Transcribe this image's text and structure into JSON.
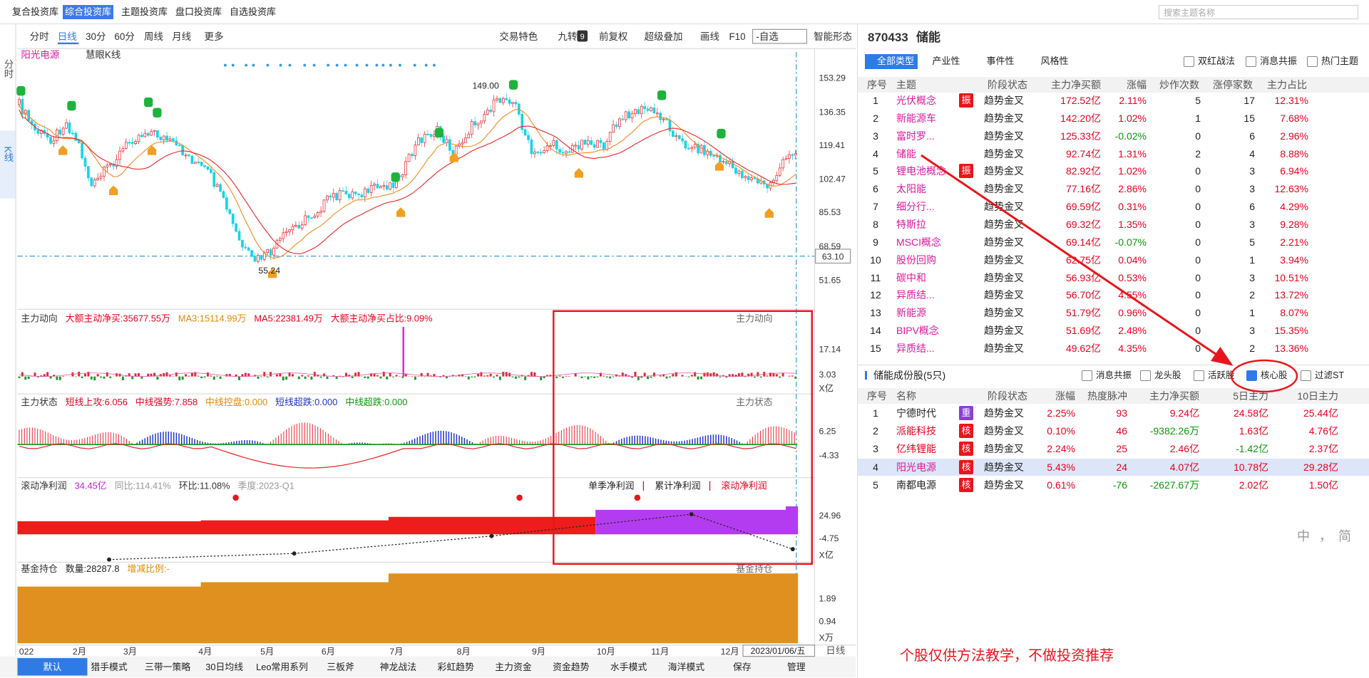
{
  "top_tabs": [
    "复合投资库",
    "综合投资库",
    "主题投资库",
    "盘口投资库",
    "自选投资库"
  ],
  "search_placeholder": "搜索主题名称",
  "side_tabs": [
    "分时",
    "K线"
  ],
  "toolbar": {
    "periods": [
      "分时",
      "日线",
      "30分",
      "60分",
      "周线",
      "月线",
      "更多"
    ],
    "tools": [
      "交易特色",
      "九转",
      "前复权",
      "超级叠加",
      "画线",
      "F10",
      "-自选",
      "智能形态"
    ],
    "jiuzhuan_badge": "9"
  },
  "kline": {
    "stock": "阳光电源",
    "indicator": "慧眼K线",
    "price_ticks": [
      "153.29",
      "136.35",
      "119.41",
      "102.47",
      "85.53",
      "68.59",
      "51.65"
    ],
    "current_price": "63.10",
    "high_label": "149.00",
    "low_label": "55.24"
  },
  "panels": [
    {
      "title": "主力动向",
      "items": [
        "大额主动净买:35677.55万",
        "MA3:15114.99万",
        "MA5:22381.49万",
        "大额主动净买占比:9.09%"
      ],
      "ticks": [
        "17.14",
        "3.03",
        "X亿"
      ]
    },
    {
      "title": "主力状态",
      "items": [
        "短线上攻:6.056",
        "中线强势:7.858",
        "中线控盘:0.000",
        "短线超跌:0.000",
        "中线超跌:0.000"
      ],
      "ticks": [
        "6.25",
        "-4.33"
      ]
    },
    {
      "title": "滚动净利润",
      "items": [
        "34.45亿",
        "同比:114.41%",
        "环比:11.08%",
        "季度:2023-Q1"
      ],
      "buttons": [
        "单季净利润",
        "累计净利润",
        "滚动净利润"
      ],
      "ticks": [
        "24.96",
        "-4.75",
        "X亿"
      ]
    },
    {
      "title": "基金持仓",
      "items": [
        "数量:28287.8",
        "增减比例:-"
      ],
      "ticks": [
        "1.89",
        "0.94",
        "X万"
      ]
    }
  ],
  "x_axis": [
    "022",
    "2月",
    "3月",
    "4月",
    "5月",
    "6月",
    "7月",
    "8月",
    "9月",
    "10月",
    "11月",
    "12月"
  ],
  "x_cursor": "2023/01/06/五",
  "period": "日线",
  "bottom_tabs": [
    "默认",
    "猎手模式",
    "三带一策略",
    "30日均线",
    "Leo常用系列",
    "三板斧",
    "神龙战法",
    "彩虹趋势",
    "主力资金",
    "资金趋势",
    "水手模式",
    "海洋模式",
    "保存",
    "管理"
  ],
  "detail": {
    "code": "870433",
    "name": "储能",
    "filter_tabs": [
      "全部类型",
      "产业性",
      "事件性",
      "风格性"
    ],
    "checks": [
      "双红战法",
      "消息共振",
      "热门主题"
    ],
    "columns": [
      "序号",
      "主题",
      "阶段状态",
      "主力净买额",
      "涨幅",
      "炒作次数",
      "涨停家数",
      "主力占比"
    ],
    "rows": [
      {
        "no": "1",
        "name": "光伏概念",
        "badge": "振",
        "stage": "趋势金叉",
        "net": "172.52亿",
        "chg": "2.11%",
        "times": "5",
        "limit": "17",
        "ratio": "12.31%"
      },
      {
        "no": "2",
        "name": "新能源车",
        "stage": "趋势金叉",
        "net": "142.20亿",
        "chg": "1.02%",
        "times": "1",
        "limit": "15",
        "ratio": "7.68%"
      },
      {
        "no": "3",
        "name": "富时罗...",
        "stage": "趋势金叉",
        "net": "125.33亿",
        "chg": "-0.02%",
        "times": "0",
        "limit": "6",
        "ratio": "2.96%"
      },
      {
        "no": "4",
        "name": "储能",
        "stage": "趋势金叉",
        "net": "92.74亿",
        "chg": "1.31%",
        "times": "2",
        "limit": "4",
        "ratio": "8.88%"
      },
      {
        "no": "5",
        "name": "锂电池概念",
        "badge": "振",
        "stage": "趋势金叉",
        "net": "82.92亿",
        "chg": "1.02%",
        "times": "0",
        "limit": "3",
        "ratio": "6.94%"
      },
      {
        "no": "6",
        "name": "太阳能",
        "stage": "趋势金叉",
        "net": "77.16亿",
        "chg": "2.86%",
        "times": "0",
        "limit": "3",
        "ratio": "12.63%"
      },
      {
        "no": "7",
        "name": "细分行...",
        "stage": "趋势金叉",
        "net": "69.59亿",
        "chg": "0.31%",
        "times": "0",
        "limit": "6",
        "ratio": "4.29%"
      },
      {
        "no": "8",
        "name": "特斯拉",
        "stage": "趋势金叉",
        "net": "69.32亿",
        "chg": "1.35%",
        "times": "0",
        "limit": "3",
        "ratio": "9.28%"
      },
      {
        "no": "9",
        "name": "MSCI概念",
        "stage": "趋势金叉",
        "net": "69.14亿",
        "chg": "-0.07%",
        "times": "0",
        "limit": "5",
        "ratio": "2.21%"
      },
      {
        "no": "10",
        "name": "股份回购",
        "stage": "趋势金叉",
        "net": "62.75亿",
        "chg": "0.04%",
        "times": "0",
        "limit": "1",
        "ratio": "3.94%"
      },
      {
        "no": "11",
        "name": "碳中和",
        "stage": "趋势金叉",
        "net": "56.93亿",
        "chg": "0.53%",
        "times": "0",
        "limit": "3",
        "ratio": "10.51%"
      },
      {
        "no": "12",
        "name": "异质结...",
        "stage": "趋势金叉",
        "net": "56.70亿",
        "chg": "4.55%",
        "times": "0",
        "limit": "2",
        "ratio": "13.72%"
      },
      {
        "no": "13",
        "name": "新能源",
        "stage": "趋势金叉",
        "net": "51.79亿",
        "chg": "0.96%",
        "times": "0",
        "limit": "1",
        "ratio": "8.07%"
      },
      {
        "no": "14",
        "name": "BIPV概念",
        "stage": "趋势金叉",
        "net": "51.69亿",
        "chg": "2.48%",
        "times": "0",
        "limit": "3",
        "ratio": "15.35%"
      },
      {
        "no": "15",
        "name": "异质结...",
        "stage": "趋势金叉",
        "net": "49.62亿",
        "chg": "4.35%",
        "times": "0",
        "limit": "2",
        "ratio": "13.36%"
      }
    ]
  },
  "components": {
    "title": "储能成份股(5只)",
    "checks": [
      "消息共振",
      "龙头股",
      "活跃股",
      "核心股",
      "过滤ST"
    ],
    "columns": [
      "序号",
      "名称",
      "阶段状态",
      "涨幅",
      "热度脉冲",
      "主力净买额",
      "5日主力",
      "10日主力"
    ],
    "rows": [
      {
        "no": "1",
        "name": "宁德时代",
        "color": "#222222",
        "badge": "重",
        "stage": "趋势金叉",
        "chg": "2.25%",
        "heat": "93",
        "net": "9.24亿",
        "d5": "24.58亿",
        "d10": "25.44亿"
      },
      {
        "no": "2",
        "name": "派能科技",
        "color": "#e8001c",
        "badge": "核",
        "stage": "趋势金叉",
        "chg": "0.10%",
        "heat": "46",
        "net": "-9382.26万",
        "d5": "1.63亿",
        "d10": "4.76亿"
      },
      {
        "no": "3",
        "name": "亿纬锂能",
        "color": "#e8001c",
        "badge": "核",
        "stage": "趋势金叉",
        "chg": "2.24%",
        "heat": "25",
        "net": "2.46亿",
        "d5": "-1.42亿",
        "d10": "2.37亿"
      },
      {
        "no": "4",
        "name": "阳光电源",
        "color": "#e0189c",
        "badge": "核",
        "stage": "趋势金叉",
        "chg": "5.43%",
        "heat": "24",
        "net": "4.07亿",
        "d5": "10.78亿",
        "d10": "29.28亿"
      },
      {
        "no": "5",
        "name": "南都电源",
        "color": "#222222",
        "badge": "核",
        "stage": "趋势金叉",
        "chg": "0.61%",
        "heat": "-76",
        "net": "-2627.67万",
        "d5": "2.02亿",
        "d10": "1.50亿"
      }
    ]
  },
  "disclaimer": "个股仅供方法教学，不做投资推荐",
  "ime": [
    "中",
    "，",
    "简"
  ]
}
